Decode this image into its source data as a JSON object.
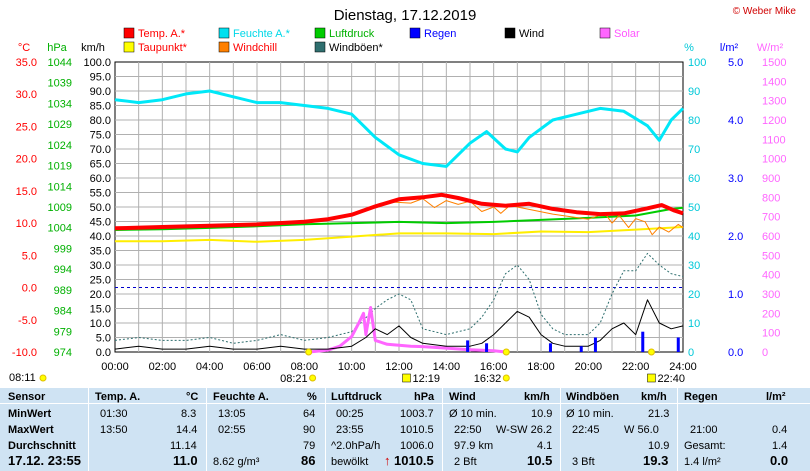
{
  "title": "Dienstag, 17.12.2019",
  "copyright": "© Weber Mike",
  "axis_units": {
    "temp": "°C",
    "press": "hPa",
    "wind": "km/h",
    "hum": "%",
    "rain": "l/m²",
    "solar": "W/m²"
  },
  "legend": [
    {
      "label": "Temp. A.*",
      "color": "#ff0000",
      "label_color": "#ff0000"
    },
    {
      "label": "Feuchte A.*",
      "color": "#00e0f0",
      "label_color": "#00d8e8"
    },
    {
      "label": "Luftdruck",
      "color": "#00cc00",
      "label_color": "#00b000"
    },
    {
      "label": "Regen",
      "color": "#0000ff",
      "label_color": "#0000ff"
    },
    {
      "label": "Wind",
      "color": "#000000",
      "label_color": "#000000"
    },
    {
      "label": "Solar",
      "color": "#ff66ff",
      "label_color": "#ff55ff"
    },
    {
      "label": "Taupunkt*",
      "color": "#ffff00",
      "label_color": "#ff0000"
    },
    {
      "label": "Windchill",
      "color": "#ff8000",
      "label_color": "#ff0000"
    },
    {
      "label": "Windböen*",
      "color": "#2f6f6f",
      "label_color": "#000000"
    }
  ],
  "markers": {
    "sunrise": "08:11",
    "sunset": "16:32",
    "solar_noon": "12:19",
    "solar_max": "08:21",
    "moon": "22:40"
  },
  "chart_data": {
    "type": "line",
    "x_range": [
      "00:00",
      "24:00"
    ],
    "x_ticks": [
      "00:00",
      "02:00",
      "04:00",
      "06:00",
      "08:00",
      "10:00",
      "12:00",
      "14:00",
      "16:00",
      "18:00",
      "20:00",
      "22:00",
      "24:00"
    ],
    "axes": {
      "temp": {
        "unit": "°C",
        "range": [
          -10,
          35
        ],
        "ticks": [
          "35.0",
          "30.0",
          "25.0",
          "20.0",
          "15.0",
          "10.0",
          "5.0",
          "0.0",
          "-5.0",
          "-10.0"
        ]
      },
      "pressure": {
        "unit": "hPa",
        "range": [
          974,
          1046
        ],
        "ticks": [
          "1044",
          "1039",
          "1034",
          "1029",
          "1024",
          "1019",
          "1014",
          "1009",
          "1004",
          "999",
          "994",
          "989",
          "984",
          "979",
          "974"
        ]
      },
      "wind": {
        "unit": "km/h",
        "range": [
          0,
          100
        ],
        "ticks": [
          "100.0",
          "95.0",
          "90.0",
          "85.0",
          "80.0",
          "75.0",
          "70.0",
          "65.0",
          "60.0",
          "55.0",
          "50.0",
          "45.0",
          "40.0",
          "35.0",
          "30.0",
          "25.0",
          "20.0",
          "15.0",
          "10.0",
          "5.0",
          "0.0"
        ]
      },
      "humidity": {
        "unit": "%",
        "range": [
          0,
          100
        ],
        "ticks": [
          "100",
          "90",
          "80",
          "70",
          "60",
          "50",
          "40",
          "30",
          "20",
          "10",
          "0"
        ]
      },
      "rain": {
        "unit": "l/m²",
        "range": [
          0,
          5
        ],
        "ticks": [
          "5.0",
          "4.0",
          "3.0",
          "2.0",
          "1.0",
          "0.0"
        ]
      },
      "solar": {
        "unit": "W/m²",
        "range": [
          0,
          1500
        ],
        "ticks": [
          "1500",
          "1400",
          "1300",
          "1200",
          "1100",
          "1000",
          "900",
          "800",
          "700",
          "600",
          "500",
          "400",
          "300",
          "200",
          "100",
          "0"
        ]
      }
    },
    "series": [
      {
        "name": "Temp. A.*",
        "axis": "temp",
        "points": [
          [
            0,
            9.2
          ],
          [
            2,
            9.4
          ],
          [
            4,
            9.6
          ],
          [
            6,
            9.8
          ],
          [
            8,
            10.2
          ],
          [
            9,
            10.6
          ],
          [
            10,
            11.3
          ],
          [
            11,
            12.6
          ],
          [
            12,
            13.7
          ],
          [
            13,
            14.0
          ],
          [
            13.8,
            14.4
          ],
          [
            14.5,
            13.9
          ],
          [
            15.5,
            13.0
          ],
          [
            16.5,
            12.7
          ],
          [
            17.5,
            13.0
          ],
          [
            18.5,
            12.2
          ],
          [
            19.5,
            11.7
          ],
          [
            20.5,
            11.4
          ],
          [
            21.5,
            11.5
          ],
          [
            22.5,
            12.3
          ],
          [
            23.1,
            12.8
          ],
          [
            23.6,
            12.0
          ],
          [
            24,
            11.5
          ]
        ]
      },
      {
        "name": "Feuchte A.*",
        "axis": "humidity",
        "points": [
          [
            0,
            87
          ],
          [
            1,
            86
          ],
          [
            2,
            87
          ],
          [
            3,
            89
          ],
          [
            4,
            90
          ],
          [
            5,
            88
          ],
          [
            6,
            86
          ],
          [
            7,
            86
          ],
          [
            8,
            85
          ],
          [
            9,
            84
          ],
          [
            10,
            82
          ],
          [
            11,
            74
          ],
          [
            12,
            68
          ],
          [
            13,
            65
          ],
          [
            14,
            64
          ],
          [
            15,
            72
          ],
          [
            15.7,
            76
          ],
          [
            16.5,
            70
          ],
          [
            17,
            69
          ],
          [
            17.5,
            74
          ],
          [
            18.5,
            80
          ],
          [
            19.5,
            82
          ],
          [
            20.5,
            84
          ],
          [
            21.5,
            83
          ],
          [
            22.5,
            78
          ],
          [
            23,
            73
          ],
          [
            23.5,
            80
          ],
          [
            24,
            84
          ]
        ]
      },
      {
        "name": "Luftdruck",
        "axis": "pressure",
        "points": [
          [
            0,
            1004.3
          ],
          [
            2,
            1004.5
          ],
          [
            4,
            1004.8
          ],
          [
            6,
            1005.2
          ],
          [
            8,
            1005.7
          ],
          [
            10,
            1006.0
          ],
          [
            12,
            1006.3
          ],
          [
            14,
            1006.0
          ],
          [
            16,
            1006.3
          ],
          [
            18,
            1006.8
          ],
          [
            20,
            1007.3
          ],
          [
            22,
            1007.9
          ],
          [
            23.5,
            1009.5
          ],
          [
            24,
            1009.8
          ]
        ]
      },
      {
        "name": "Taupunkt*",
        "axis": "temp",
        "points": [
          [
            0,
            7.2
          ],
          [
            2,
            7.2
          ],
          [
            4,
            7.4
          ],
          [
            6,
            7.1
          ],
          [
            8,
            7.4
          ],
          [
            10,
            7.9
          ],
          [
            12,
            8.4
          ],
          [
            14,
            8.4
          ],
          [
            16,
            8.3
          ],
          [
            18,
            8.7
          ],
          [
            20,
            8.6
          ],
          [
            22,
            9.0
          ],
          [
            24,
            9.4
          ]
        ]
      },
      {
        "name": "Windchill",
        "axis": "temp",
        "points": [
          [
            9.5,
            10.8
          ],
          [
            10.5,
            12.0
          ],
          [
            11.5,
            13.3
          ],
          [
            12.5,
            13.1
          ],
          [
            13,
            13.8
          ],
          [
            13.5,
            12.4
          ],
          [
            14,
            13.5
          ],
          [
            14.5,
            12.9
          ],
          [
            15,
            13.4
          ],
          [
            15.5,
            11.8
          ],
          [
            16,
            12.5
          ],
          [
            16.3,
            11.5
          ],
          [
            16.7,
            12.8
          ],
          [
            17,
            12.5
          ],
          [
            18.5,
            11.4
          ],
          [
            20,
            10.6
          ],
          [
            20.7,
            11.5
          ],
          [
            21,
            10.0
          ],
          [
            21.3,
            11.2
          ],
          [
            21.7,
            9.3
          ],
          [
            22,
            10.7
          ],
          [
            22.4,
            10.2
          ],
          [
            22.7,
            8.2
          ],
          [
            23,
            9.4
          ],
          [
            23.4,
            8.6
          ],
          [
            23.8,
            9.8
          ],
          [
            24,
            9.3
          ]
        ]
      },
      {
        "name": "Wind",
        "axis": "wind",
        "points": [
          [
            0,
            1
          ],
          [
            1,
            2
          ],
          [
            2,
            1
          ],
          [
            3,
            1
          ],
          [
            4,
            2
          ],
          [
            5,
            1
          ],
          [
            6,
            1
          ],
          [
            7,
            2
          ],
          [
            8,
            1
          ],
          [
            9,
            1
          ],
          [
            10,
            2
          ],
          [
            10.6,
            5
          ],
          [
            11,
            8
          ],
          [
            11.5,
            6
          ],
          [
            12,
            9
          ],
          [
            12.5,
            5
          ],
          [
            13,
            3
          ],
          [
            14,
            2
          ],
          [
            15,
            2
          ],
          [
            15.5,
            3
          ],
          [
            16,
            6
          ],
          [
            16.5,
            10
          ],
          [
            17,
            14
          ],
          [
            17.5,
            12
          ],
          [
            18,
            6
          ],
          [
            18.5,
            3
          ],
          [
            19,
            2
          ],
          [
            20,
            2
          ],
          [
            20.5,
            4
          ],
          [
            21,
            8
          ],
          [
            21.5,
            10
          ],
          [
            22,
            6
          ],
          [
            22.5,
            18
          ],
          [
            23,
            10
          ],
          [
            23.5,
            8
          ],
          [
            24,
            9
          ]
        ]
      },
      {
        "name": "Windböen*",
        "axis": "wind",
        "points": [
          [
            0,
            4
          ],
          [
            1,
            5
          ],
          [
            2,
            4
          ],
          [
            3,
            4
          ],
          [
            4,
            5
          ],
          [
            5,
            3
          ],
          [
            6,
            4
          ],
          [
            7,
            6
          ],
          [
            8,
            4
          ],
          [
            9,
            5
          ],
          [
            10,
            7
          ],
          [
            11,
            15
          ],
          [
            11.5,
            18
          ],
          [
            12,
            20
          ],
          [
            12.5,
            18
          ],
          [
            13,
            8
          ],
          [
            14,
            6
          ],
          [
            15,
            8
          ],
          [
            15.5,
            12
          ],
          [
            16,
            18
          ],
          [
            16.5,
            27
          ],
          [
            17,
            30
          ],
          [
            17.5,
            25
          ],
          [
            18,
            13
          ],
          [
            18.5,
            8
          ],
          [
            19,
            6
          ],
          [
            20,
            6
          ],
          [
            20.5,
            10
          ],
          [
            21,
            20
          ],
          [
            21.5,
            28
          ],
          [
            22,
            28
          ],
          [
            22.5,
            34
          ],
          [
            23,
            30
          ],
          [
            23.5,
            27
          ],
          [
            24,
            26
          ]
        ]
      },
      {
        "name": "Solar",
        "axis": "solar",
        "points": [
          [
            8.2,
            0
          ],
          [
            9,
            10
          ],
          [
            9.5,
            30
          ],
          [
            10,
            80
          ],
          [
            10.3,
            150
          ],
          [
            10.5,
            200
          ],
          [
            10.6,
            90
          ],
          [
            10.8,
            230
          ],
          [
            11,
            60
          ],
          [
            11.5,
            40
          ],
          [
            12,
            35
          ],
          [
            12.5,
            30
          ],
          [
            13,
            28
          ],
          [
            14,
            20
          ],
          [
            15,
            12
          ],
          [
            16,
            6
          ],
          [
            16.5,
            0
          ]
        ]
      },
      {
        "name": "Regen",
        "axis": "rain",
        "points": [
          [
            14.9,
            0.2
          ],
          [
            15.7,
            0.15
          ],
          [
            18.4,
            0.15
          ],
          [
            19.7,
            0.1
          ],
          [
            20.3,
            0.25
          ],
          [
            22.3,
            0.35
          ],
          [
            23.8,
            0.25
          ]
        ]
      }
    ],
    "grid": true,
    "legend_position": "top"
  },
  "summary": {
    "col_headers": {
      "sensor": "Sensor",
      "temp": "Temp. A.",
      "temp_unit": "°C",
      "hum": "Feuchte A.",
      "hum_unit": "%",
      "press": "Luftdruck",
      "press_unit": "hPa",
      "wind": "Wind",
      "wind_unit": "km/h",
      "gust": "Windböen",
      "gust_unit": "km/h",
      "rain": "Regen",
      "rain_unit": "l/m²"
    },
    "row_labels": {
      "min": "MinWert",
      "max": "MaxWert",
      "avg": "Durchschnitt",
      "now": "17.12. 23:55"
    },
    "temp": {
      "min_time": "01:30",
      "min": "8.3",
      "max_time": "13:50",
      "max": "14.4",
      "avg": "11.14",
      "now": "11.0"
    },
    "hum": {
      "min_time": "13:05",
      "min": "64",
      "max_time": "02:55",
      "max": "90",
      "avg": "79",
      "now_extra": "8.62 g/m³",
      "now": "86"
    },
    "press": {
      "min_time": "00:25",
      "min": "1003.7",
      "max_time": "23:55",
      "max": "1010.5",
      "avg_label": "^2.0hPa/h",
      "avg": "1006.0",
      "now_label": "bewölkt",
      "now_arrow": "↑",
      "now": "1010.5"
    },
    "wind": {
      "min_label": "Ø 10 min.",
      "min": "10.9",
      "max_time": "22:50",
      "max_dir": "W-SW 26.2",
      "avg_label": "97.9 km",
      "avg": "4.1",
      "now_label": "2 Bft",
      "now": "10.5"
    },
    "gust": {
      "min_label": "Ø 10 min.",
      "min": "21.3",
      "max_time": "22:45",
      "max_dir": "W 56.0",
      "avg": "10.9",
      "now_label": "3 Bft",
      "now": "19.3"
    },
    "rain": {
      "max_time": "21:00",
      "max": "0.4",
      "avg_label": "Gesamt:",
      "avg": "1.4",
      "now_label": "1.4 l/m²",
      "now": "0.0"
    }
  }
}
